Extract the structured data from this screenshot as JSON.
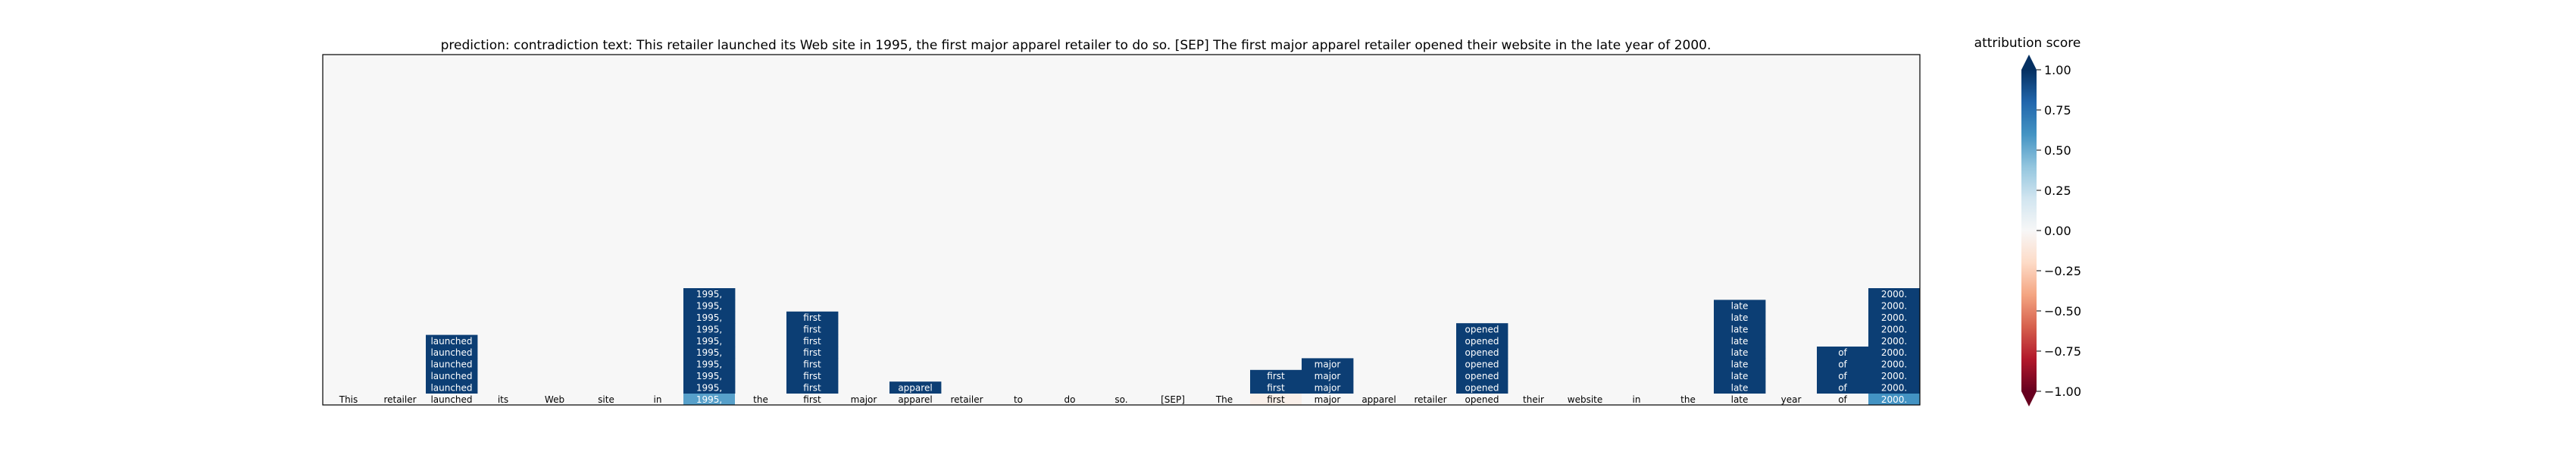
{
  "title": "prediction:  contradiction     text:  This retailer launched its Web site in 1995, the first major apparel retailer to do so. [SEP] The first major apparel retailer opened their website in the late year of 2000.",
  "colorbar": {
    "label": "attribution score",
    "ticks": [
      1.0,
      0.75,
      0.5,
      0.25,
      0.0,
      -0.25,
      -0.5,
      -0.75,
      -1.0
    ],
    "tick_labels": [
      "1.00",
      "0.75",
      "0.50",
      "0.25",
      "0.00",
      "−0.25",
      "−0.50",
      "−0.75",
      "−1.00"
    ],
    "extend": "both",
    "colormap": "RdBu"
  },
  "chart_data": {
    "type": "heatmap",
    "title": "prediction:  contradiction     text:  This retailer launched its Web site in 1995, the first major apparel retailer to do so. [SEP] The first major apparel retailer opened their website in the late year of 2000.",
    "tokens": [
      "This",
      "retailer",
      "launched",
      "its",
      "Web",
      "site",
      "in",
      "1995,",
      "the",
      "first",
      "major",
      "apparel",
      "retailer",
      "to",
      "do",
      "so.",
      "[SEP]",
      "The",
      "first",
      "major",
      "apparel",
      "retailer",
      "opened",
      "their",
      "website",
      "in",
      "the",
      "late",
      "year",
      "of",
      "2000."
    ],
    "rows": 30,
    "baseline": [
      0,
      0,
      0,
      0,
      0,
      0,
      0,
      0.55,
      0,
      0,
      0,
      0,
      0,
      0,
      0,
      0,
      0,
      0,
      -0.06,
      0,
      0,
      0,
      0,
      0,
      0,
      0,
      0,
      0,
      0,
      0,
      0.6
    ],
    "stacks": [
      {
        "token_index": 2,
        "label": "launched",
        "count": 5,
        "value": 0.95
      },
      {
        "token_index": 7,
        "label": "1995,",
        "count": 9,
        "value": 0.95
      },
      {
        "token_index": 9,
        "label": "first",
        "count": 7,
        "value": 0.95
      },
      {
        "token_index": 11,
        "label": "apparel",
        "count": 1,
        "value": 0.95
      },
      {
        "token_index": 18,
        "label": "first",
        "count": 2,
        "value": 0.95
      },
      {
        "token_index": 19,
        "label": "major",
        "count": 3,
        "value": 0.95
      },
      {
        "token_index": 22,
        "label": "opened",
        "count": 6,
        "value": 0.95
      },
      {
        "token_index": 27,
        "label": "late",
        "count": 8,
        "value": 0.95
      },
      {
        "token_index": 29,
        "label": "of",
        "count": 4,
        "value": 0.95
      },
      {
        "token_index": 30,
        "label": "2000.",
        "count": 9,
        "value": 0.95
      }
    ],
    "vmin": -1.0,
    "vmax": 1.0
  }
}
